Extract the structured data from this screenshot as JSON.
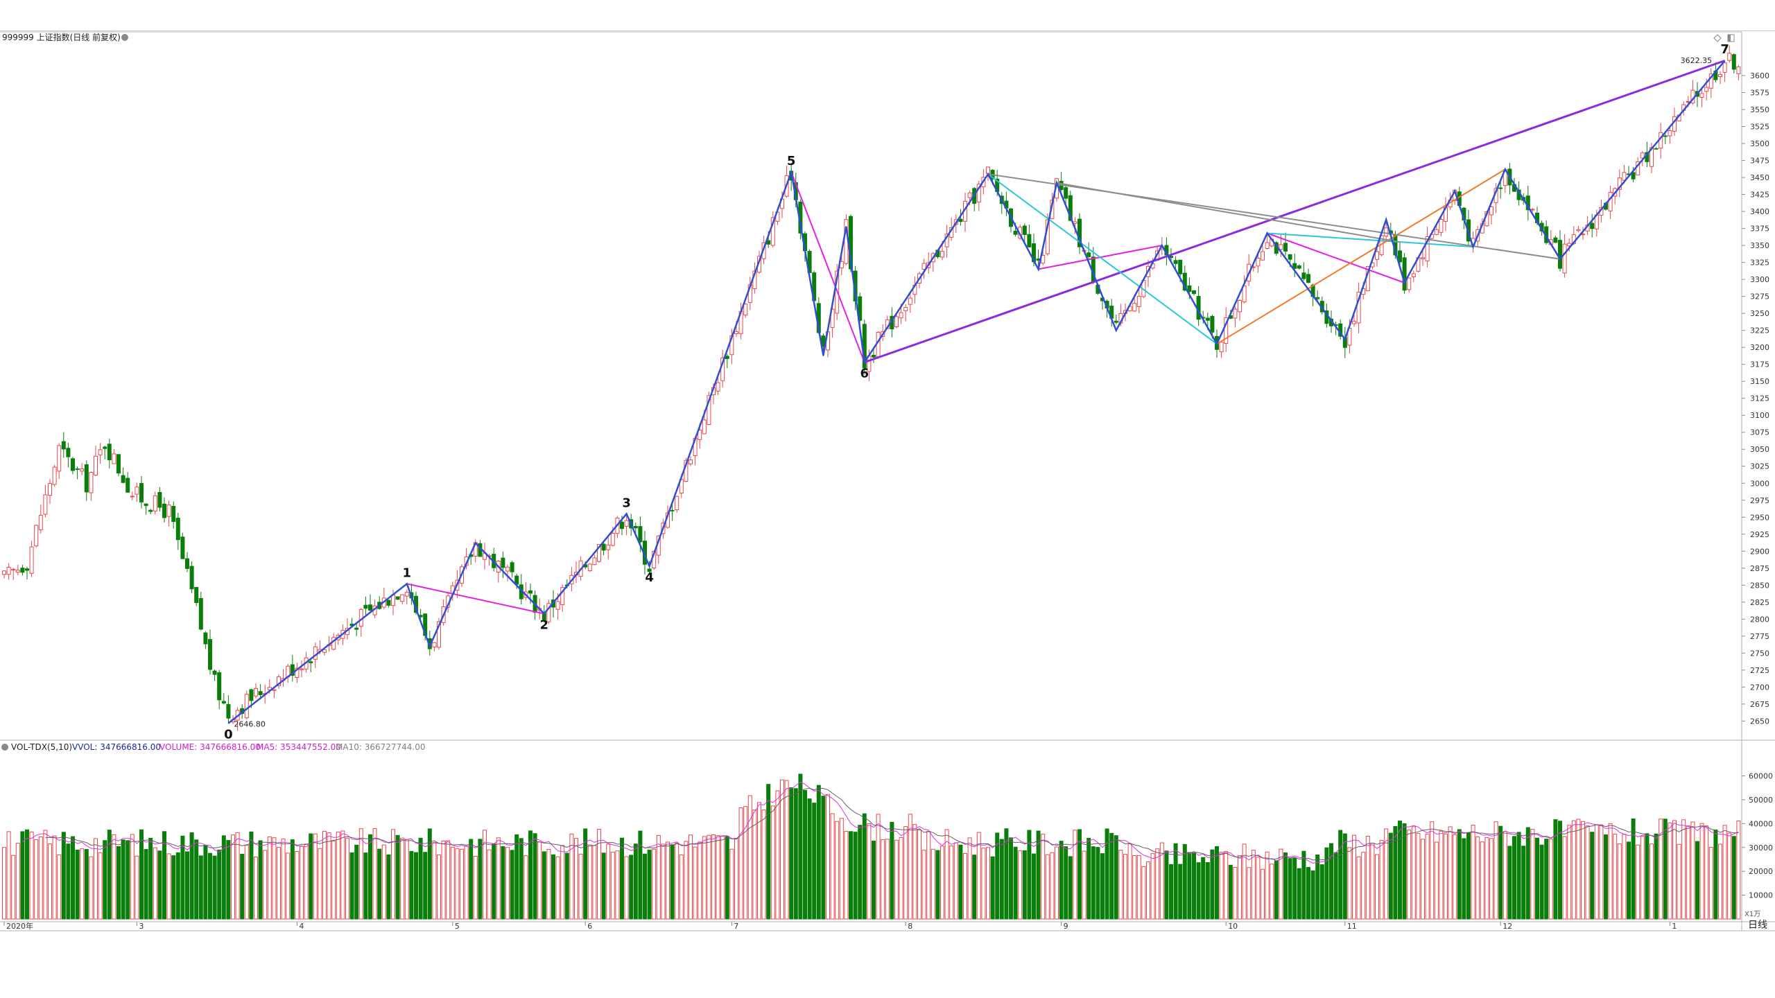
{
  "header": {
    "title": "999999 上证指数(日线 前复权)",
    "period_label": "日线"
  },
  "indicator_bar": {
    "name": "VOL-TDX(5,10)",
    "vvol": "VVOL: 347666816.00",
    "volume": "VOLUME: 347666816.00",
    "ma5": "MA5: 353447552.00",
    "ma10": "MA10: 366727744.00"
  },
  "colors": {
    "up": "#e8464b",
    "down": "#0a7e0a",
    "zigzag": "#2f4fd1",
    "trend_purple": "#8a2be2",
    "magenta": "#e31fe6",
    "cyan": "#28c8d8",
    "orange": "#f07a28",
    "gray": "#8c8c8c",
    "ma5": "#e030e0",
    "ma10": "#606060"
  },
  "chart_data": [
    {
      "type": "candlestick",
      "title": "999999 上证指数(日线 前复权)",
      "y_ticks": [
        2650,
        2675,
        2700,
        2725,
        2750,
        2775,
        2800,
        2825,
        2850,
        2875,
        2900,
        2925,
        2950,
        2975,
        3000,
        3025,
        3050,
        3075,
        3100,
        3125,
        3150,
        3175,
        3200,
        3225,
        3250,
        3275,
        3300,
        3325,
        3350,
        3375,
        3400,
        3425,
        3450,
        3475,
        3500,
        3525,
        3550,
        3575,
        3600
      ],
      "ylim": [
        2630,
        3650
      ],
      "x_ticks": [
        {
          "index": 0,
          "label": "2020年"
        },
        {
          "index": 29,
          "label": "3"
        },
        {
          "index": 64,
          "label": "4"
        },
        {
          "index": 98,
          "label": "5"
        },
        {
          "index": 127,
          "label": "6"
        },
        {
          "index": 159,
          "label": "7"
        },
        {
          "index": 197,
          "label": "8"
        },
        {
          "index": 231,
          "label": "9"
        },
        {
          "index": 267,
          "label": "10"
        },
        {
          "index": 293,
          "label": "11"
        },
        {
          "index": 327,
          "label": "12"
        },
        {
          "index": 364,
          "label": "1"
        }
      ],
      "wave_points": [
        {
          "label": "0",
          "i": 49,
          "price": 2646.8
        },
        {
          "label": "1",
          "i": 88,
          "price": 2852
        },
        {
          "label": "2",
          "i": 118,
          "price": 2808
        },
        {
          "label": "3",
          "i": 136,
          "price": 2955
        },
        {
          "label": "4",
          "i": 141,
          "price": 2878
        },
        {
          "label": "5",
          "i": 172,
          "price": 3458
        },
        {
          "label": "6",
          "i": 188,
          "price": 3178
        },
        {
          "label": "7",
          "i": 376,
          "price": 3622.35
        }
      ],
      "price_labels": {
        "low": "2646.80",
        "high": "3622.35"
      },
      "zigzag": [
        [
          49,
          2646.8
        ],
        [
          88,
          2852
        ],
        [
          93,
          2760
        ],
        [
          103,
          2912
        ],
        [
          118,
          2808
        ],
        [
          136,
          2955
        ],
        [
          141,
          2878
        ],
        [
          172,
          3458
        ],
        [
          179,
          3188
        ],
        [
          184,
          3378
        ],
        [
          188,
          3178
        ],
        [
          215,
          3455
        ],
        [
          226,
          3315
        ],
        [
          230,
          3442
        ],
        [
          243,
          3225
        ],
        [
          253,
          3350
        ],
        [
          265,
          3205
        ],
        [
          276,
          3368
        ],
        [
          293,
          3212
        ],
        [
          302,
          3388
        ],
        [
          306,
          3295
        ],
        [
          317,
          3430
        ],
        [
          321,
          3348
        ],
        [
          328,
          3462
        ],
        [
          340,
          3330
        ],
        [
          376,
          3622
        ]
      ],
      "trendlines": [
        {
          "color": "trend_purple",
          "points": [
            [
              188,
              3178
            ],
            [
              376,
              3622
            ]
          ]
        },
        {
          "color": "magenta",
          "points": [
            [
              88,
              2852
            ],
            [
              118,
              2808
            ]
          ]
        },
        {
          "color": "magenta",
          "points": [
            [
              172,
              3458
            ],
            [
              188,
              3178
            ]
          ]
        },
        {
          "color": "magenta",
          "points": [
            [
              226,
              3315
            ],
            [
              253,
              3350
            ]
          ]
        },
        {
          "color": "magenta",
          "points": [
            [
              276,
              3368
            ],
            [
              306,
              3295
            ]
          ]
        },
        {
          "color": "cyan",
          "points": [
            [
              215,
              3455
            ],
            [
              265,
              3205
            ]
          ]
        },
        {
          "color": "cyan",
          "points": [
            [
              276,
              3368
            ],
            [
              321,
              3348
            ]
          ]
        },
        {
          "color": "orange",
          "points": [
            [
              265,
              3205
            ],
            [
              328,
              3462
            ]
          ]
        },
        {
          "color": "gray",
          "points": [
            [
              215,
              3455
            ],
            [
              340,
              3330
            ]
          ]
        },
        {
          "color": "gray",
          "points": [
            [
              230,
              3442
            ],
            [
              305,
              3355
            ]
          ]
        }
      ],
      "ma_overlay_legend": ""
    },
    {
      "type": "bar",
      "title": "VOL-TDX(5,10)",
      "y_ticks": [
        10000,
        20000,
        30000,
        40000,
        50000,
        60000
      ],
      "ylim": [
        0,
        68000
      ],
      "unit": "X1万"
    }
  ]
}
